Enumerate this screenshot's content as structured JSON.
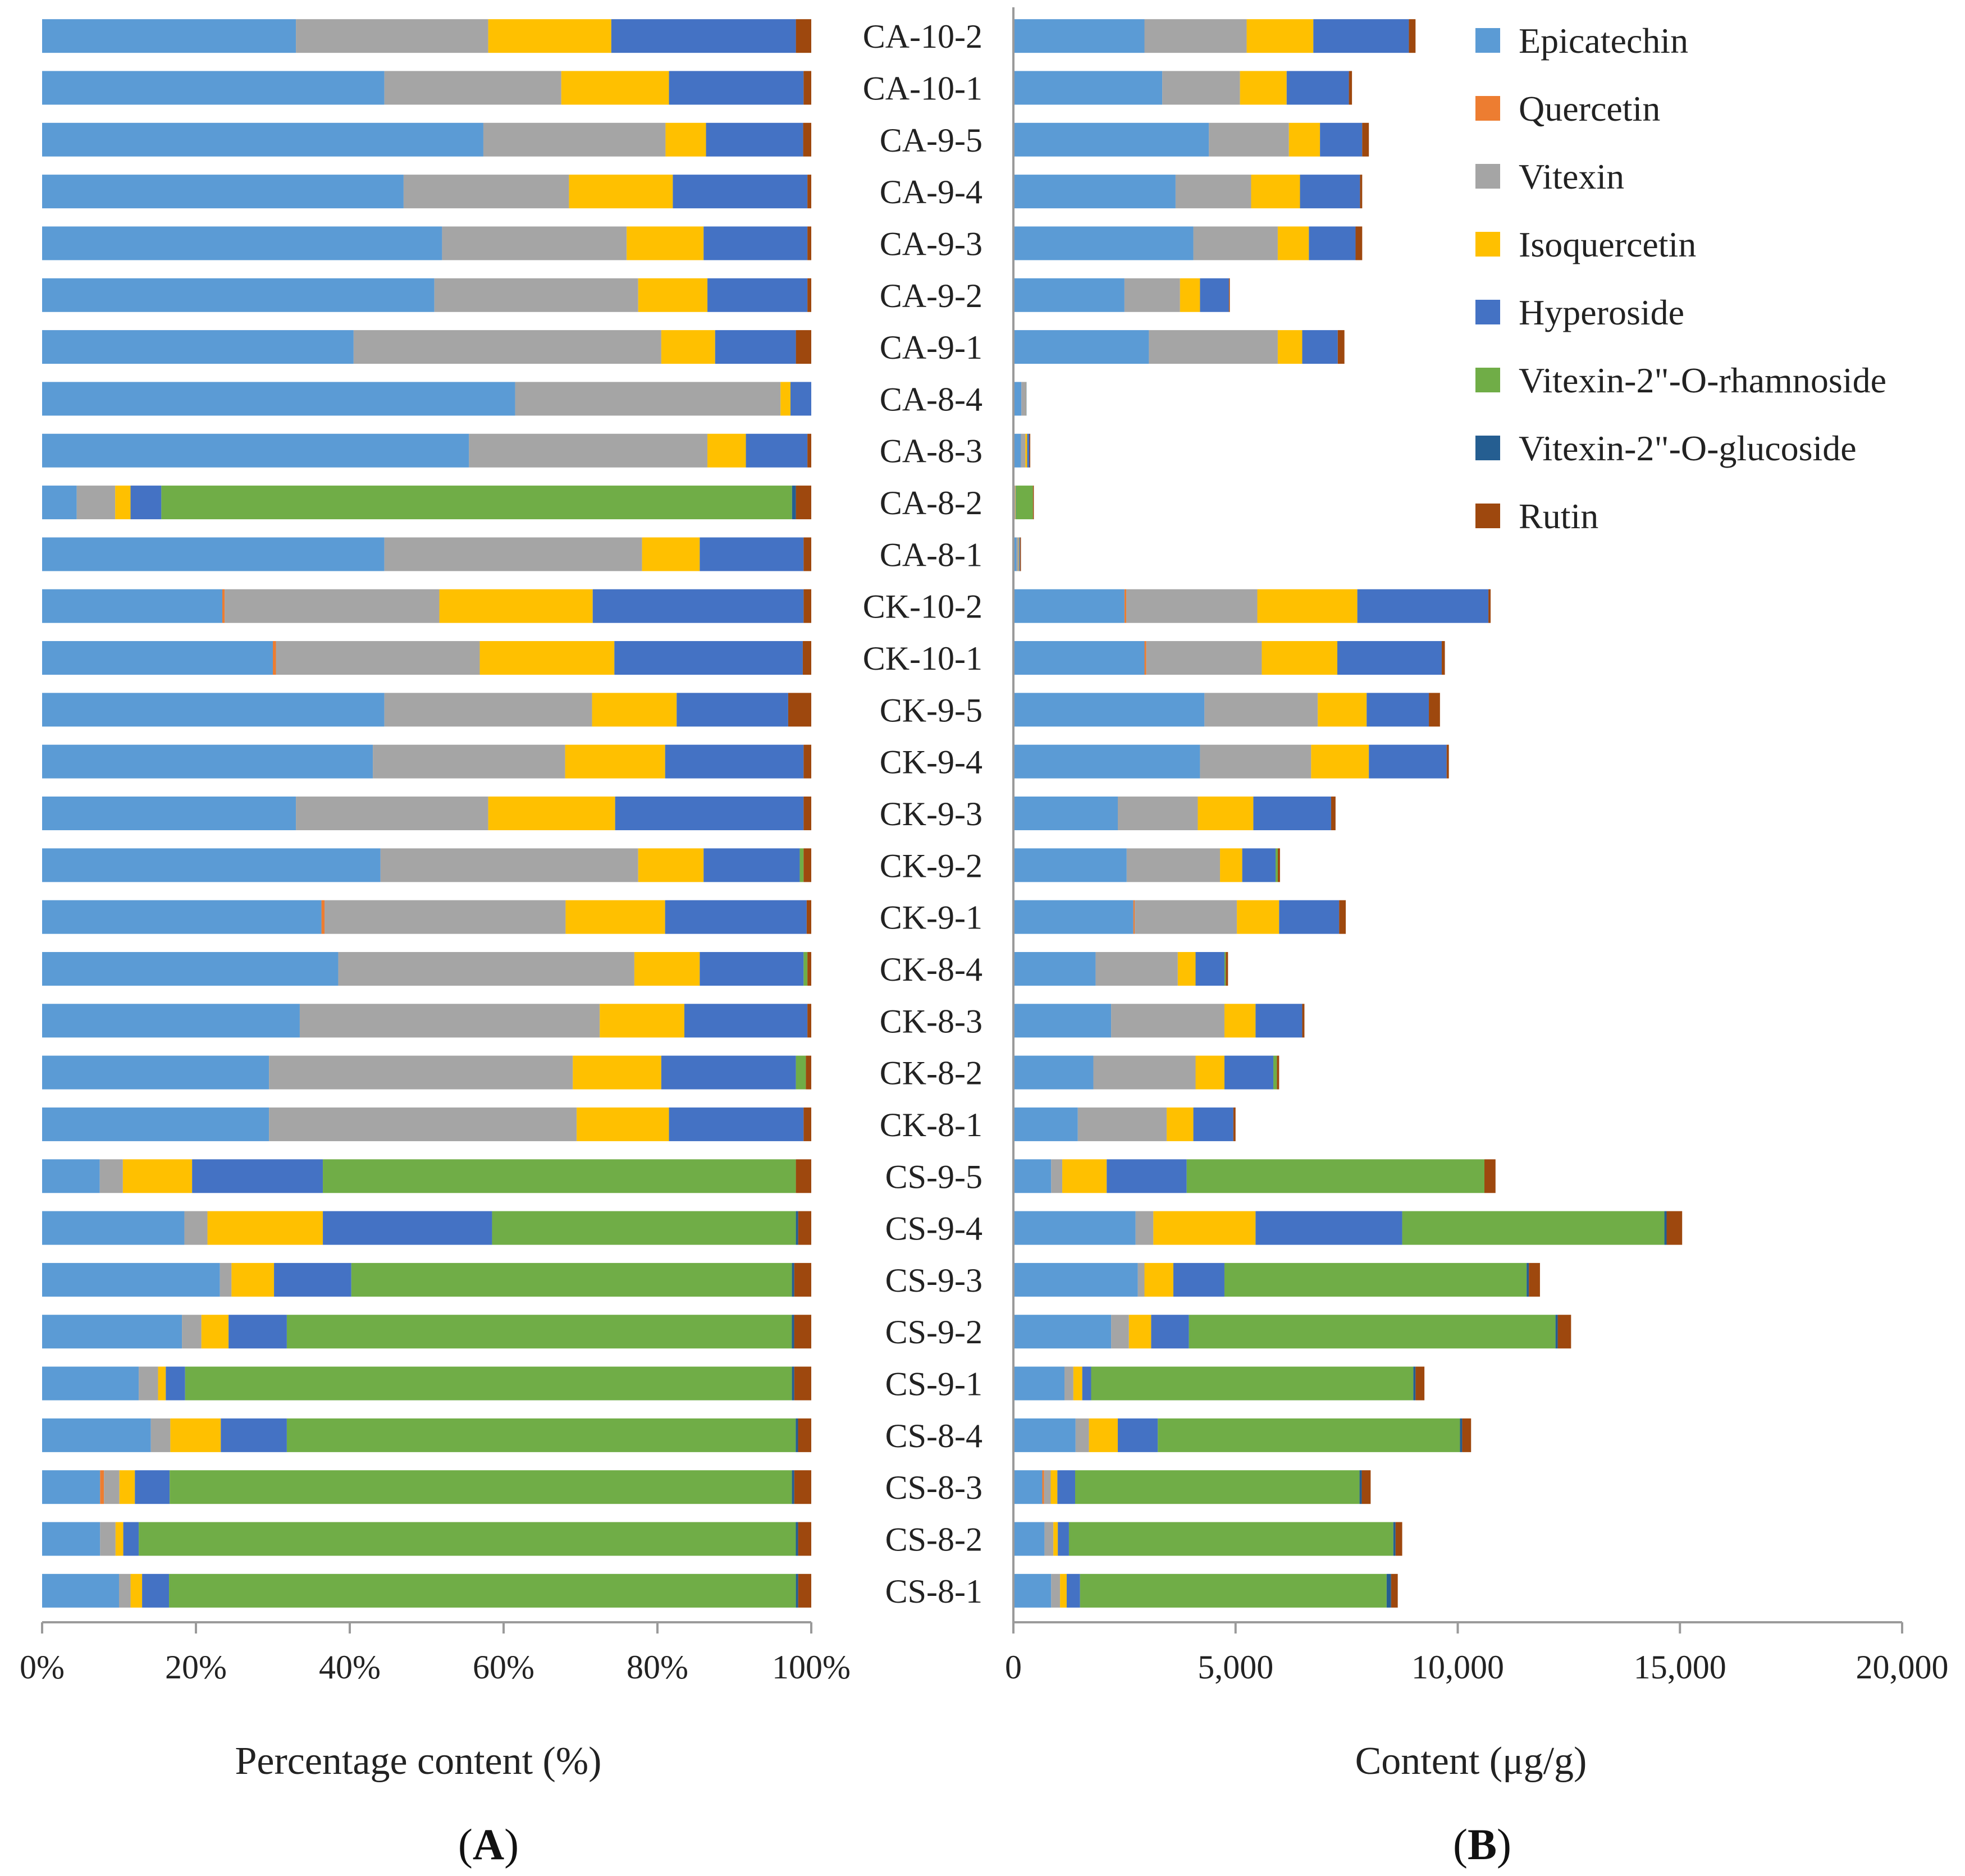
{
  "colors": {
    "Epicatechin": "#5B9BD5",
    "Quercetin": "#ED7D31",
    "Vitexin": "#A5A5A5",
    "Isoquercetin": "#FFC000",
    "Hyperoside": "#4472C4",
    "Vitexin-2\"-O-rhamnoside": "#70AD47",
    "Vitexin-2\"-O-glucoside": "#255E91",
    "Rutin": "#9E480E"
  },
  "chart_data": [
    {
      "type": "bar",
      "orientation": "horizontal",
      "stacked": "percent",
      "panel_label": "(A)",
      "title": "",
      "xlabel": "Percentage content (%)",
      "ylabel": "",
      "xlim": [
        0,
        100
      ],
      "xticks": [
        "0%",
        "20%",
        "40%",
        "60%",
        "80%",
        "100%"
      ],
      "grid": false,
      "categories": [
        "CA-10-2",
        "CA-10-1",
        "CA-9-5",
        "CA-9-4",
        "CA-9-3",
        "CA-9-2",
        "CA-9-1",
        "CA-8-4",
        "CA-8-3",
        "CA-8-2",
        "CA-8-1",
        "CK-10-2",
        "CK-10-1",
        "CK-9-5",
        "CK-9-4",
        "CK-9-3",
        "CK-9-2",
        "CK-9-1",
        "CK-8-4",
        "CK-8-3",
        "CK-8-2",
        "CK-8-1",
        "CS-9-5",
        "CS-9-4",
        "CS-9-3",
        "CS-9-2",
        "CS-9-1",
        "CS-8-4",
        "CS-8-3",
        "CS-8-2",
        "CS-8-1"
      ],
      "series": [
        {
          "name": "Epicatechin",
          "values": [
            33,
            44.5,
            54.5,
            47,
            52,
            51,
            40.5,
            61.5,
            55.5,
            4.5,
            44.5,
            23.5,
            30,
            44.5,
            43,
            33,
            44,
            36.5,
            38.5,
            33.5,
            29.5,
            29.5,
            7.5,
            18.5,
            23,
            18,
            12.5,
            14,
            7.5,
            7.5,
            10
          ]
        },
        {
          "name": "Quercetin",
          "values": [
            0,
            0,
            0,
            0,
            0,
            0,
            0,
            0,
            0,
            0,
            0,
            0.3,
            0.4,
            0,
            0,
            0,
            0,
            0.4,
            0,
            0,
            0,
            0,
            0,
            0,
            0,
            0,
            0,
            0,
            0.5,
            0,
            0
          ]
        },
        {
          "name": "Vitexin",
          "values": [
            25,
            23,
            22.5,
            21.5,
            24,
            26.5,
            40,
            34.5,
            31,
            5,
            33.5,
            28,
            26.5,
            27,
            25,
            25,
            33.5,
            31.5,
            38.5,
            39,
            39.5,
            40,
            3,
            3,
            1.5,
            2.5,
            2.5,
            2.5,
            2,
            2,
            1.5
          ]
        },
        {
          "name": "Isoquercetin",
          "values": [
            16,
            14,
            5,
            13.5,
            10,
            9,
            7,
            1.3,
            5,
            2,
            7.5,
            20,
            17.5,
            11,
            13,
            16.5,
            8.5,
            13,
            8.5,
            11,
            11.5,
            12,
            9,
            15,
            5.5,
            3.5,
            1,
            6.5,
            2,
            1,
            1.5
          ]
        },
        {
          "name": "Hyperoside",
          "values": [
            24,
            17.5,
            12,
            17.5,
            13.5,
            13,
            10.5,
            2.7,
            8,
            4,
            13.5,
            27.5,
            24.5,
            14.5,
            18,
            24.5,
            12.5,
            18.5,
            13.5,
            16,
            17.5,
            17.5,
            17,
            22,
            10,
            7.5,
            2.5,
            8.5,
            4.5,
            2,
            3.5
          ]
        },
        {
          "name": "Vitexin-2\"-O-rhamnoside",
          "values": [
            0,
            0,
            0,
            0,
            0,
            0,
            0,
            0,
            0,
            82,
            0,
            0,
            0,
            0,
            0,
            0,
            0.5,
            0,
            0.5,
            0,
            1.3,
            0,
            61.5,
            39.5,
            57,
            65,
            78.5,
            65.5,
            80.5,
            85,
            81.5
          ]
        },
        {
          "name": "Vitexin-2\"-O-glucoside",
          "values": [
            0,
            0,
            0,
            0,
            0,
            0,
            0,
            0,
            0,
            0.5,
            0,
            0,
            0,
            0,
            0,
            0,
            0,
            0,
            0,
            0,
            0,
            0,
            0,
            0.3,
            0.3,
            0.3,
            0.3,
            0.3,
            0.3,
            0.3,
            0.3
          ]
        },
        {
          "name": "Rutin",
          "values": [
            2,
            1,
            1,
            0.5,
            0.5,
            0.5,
            2,
            0,
            0.5,
            2,
            1,
            1,
            1.1,
            3,
            1,
            1,
            1,
            0.6,
            0.5,
            0.5,
            0.7,
            1,
            2,
            1.7,
            2.2,
            2.2,
            2.2,
            1.7,
            2.2,
            1.7,
            1.7
          ]
        }
      ]
    },
    {
      "type": "bar",
      "orientation": "horizontal",
      "stacked": true,
      "panel_label": "(B)",
      "title": "",
      "xlabel": "Content (μg/g)",
      "ylabel": "",
      "xlim": [
        0,
        20000
      ],
      "xticks": [
        "0",
        "5,000",
        "10,000",
        "15,000",
        "20,000"
      ],
      "grid": false,
      "legend_position": "top-right",
      "categories": [
        "CA-10-2",
        "CA-10-1",
        "CA-9-5",
        "CA-9-4",
        "CA-9-3",
        "CA-9-2",
        "CA-9-1",
        "CA-8-4",
        "CA-8-3",
        "CA-8-2",
        "CA-8-1",
        "CK-10-2",
        "CK-10-1",
        "CK-9-5",
        "CK-9-4",
        "CK-9-3",
        "CK-9-2",
        "CK-9-1",
        "CK-8-4",
        "CK-8-3",
        "CK-8-2",
        "CK-8-1",
        "CS-9-5",
        "CS-9-4",
        "CS-9-3",
        "CS-9-2",
        "CS-9-1",
        "CS-8-4",
        "CS-8-3",
        "CS-8-2",
        "CS-8-1"
      ],
      "series": [
        {
          "name": "Epicatechin",
          "values": [
            2950,
            3350,
            4400,
            3650,
            4050,
            2500,
            3050,
            180,
            170,
            20,
            70,
            2500,
            2950,
            4300,
            4200,
            2350,
            2550,
            2700,
            1850,
            2200,
            1800,
            1450,
            850,
            2750,
            2800,
            2200,
            1150,
            1400,
            650,
            700,
            850
          ]
        },
        {
          "name": "Quercetin",
          "values": [
            0,
            0,
            0,
            0,
            0,
            0,
            0,
            0,
            0,
            0,
            0,
            40,
            40,
            0,
            0,
            0,
            0,
            30,
            0,
            0,
            0,
            0,
            0,
            0,
            0,
            0,
            0,
            0,
            40,
            0,
            0
          ]
        },
        {
          "name": "Vitexin",
          "values": [
            2300,
            1750,
            1800,
            1700,
            1900,
            1250,
            2900,
            100,
            100,
            20,
            50,
            2950,
            2600,
            2550,
            2500,
            1800,
            2100,
            2300,
            1850,
            2550,
            2300,
            2000,
            250,
            400,
            150,
            400,
            200,
            300,
            150,
            200,
            200
          ]
        },
        {
          "name": "Isoquercetin",
          "values": [
            1500,
            1050,
            700,
            1100,
            700,
            450,
            550,
            5,
            40,
            10,
            10,
            2250,
            1700,
            1100,
            1300,
            1250,
            500,
            950,
            400,
            700,
            650,
            600,
            1000,
            2300,
            650,
            500,
            200,
            650,
            150,
            100,
            150
          ]
        },
        {
          "name": "Hyperoside",
          "values": [
            2150,
            1400,
            950,
            1350,
            1050,
            650,
            800,
            10,
            50,
            10,
            20,
            2950,
            2350,
            1400,
            1750,
            1750,
            750,
            1350,
            650,
            1050,
            1100,
            900,
            1800,
            3300,
            1150,
            850,
            200,
            900,
            400,
            250,
            300
          ]
        },
        {
          "name": "Vitexin-2\"-O-rhamnoside",
          "values": [
            0,
            0,
            0,
            0,
            0,
            0,
            0,
            0,
            0,
            380,
            0,
            0,
            0,
            0,
            0,
            0,
            50,
            0,
            30,
            0,
            80,
            0,
            6700,
            5900,
            6800,
            8250,
            7250,
            6800,
            6400,
            7300,
            6900
          ]
        },
        {
          "name": "Vitexin-2\"-O-glucoside",
          "values": [
            0,
            0,
            0,
            0,
            0,
            0,
            0,
            0,
            0,
            0,
            0,
            0,
            0,
            0,
            0,
            0,
            0,
            0,
            0,
            0,
            0,
            0,
            0,
            50,
            50,
            50,
            50,
            50,
            50,
            50,
            100
          ]
        },
        {
          "name": "Rutin",
          "values": [
            150,
            70,
            150,
            50,
            150,
            20,
            150,
            0,
            20,
            20,
            20,
            50,
            70,
            250,
            50,
            100,
            50,
            150,
            50,
            50,
            50,
            50,
            250,
            350,
            250,
            300,
            200,
            200,
            200,
            150,
            150
          ]
        }
      ]
    }
  ]
}
